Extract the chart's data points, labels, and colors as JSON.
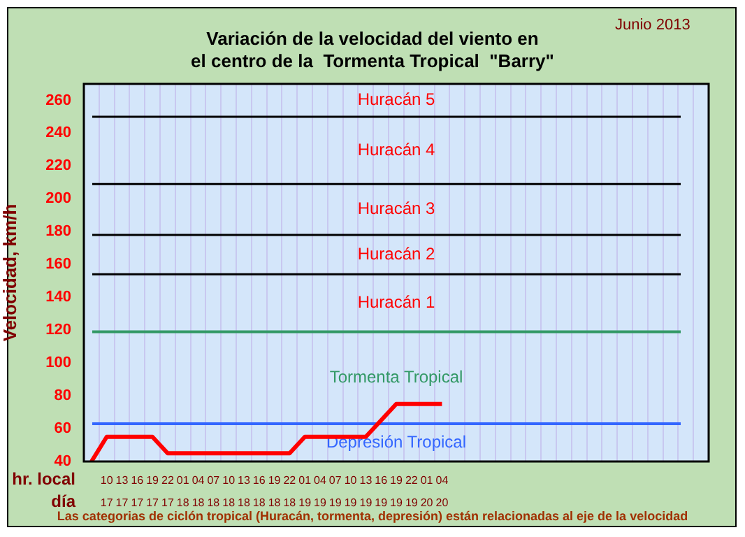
{
  "chart_data": {
    "type": "line",
    "title": "Variación de la velocidad del viento en",
    "subtitle": "el centro de la  Tormenta Tropical  \"Barry\"",
    "ylabel": "Velocidad, km/h",
    "xlabel": "hr. local\ndía",
    "categories": [
      null,
      "10\n17",
      "13\n17",
      "16\n17",
      "19\n17",
      "22\n17",
      "01\n18",
      "04\n18",
      "07\n18",
      "10\n18",
      "13\n18",
      "16\n18",
      "19\n18",
      "22\n18",
      "01\n19",
      "04\n19",
      "07\n19",
      "10\n19",
      "13\n19",
      "16\n19",
      "19\n19",
      "22\n19",
      "01\n20",
      "04\n20",
      null,
      null,
      null,
      null,
      null,
      null,
      null,
      null,
      null,
      null,
      null,
      null,
      null,
      null,
      null,
      null,
      null
    ],
    "series": [
      {
        "color": "#ff0000",
        "values": [
          40,
          55,
          55,
          55,
          55,
          45,
          45,
          45,
          45,
          45,
          45,
          45,
          45,
          45,
          55,
          55,
          55,
          55,
          55,
          65,
          75,
          75,
          75,
          75,
          null,
          null,
          null,
          null,
          null,
          null,
          null,
          null,
          null,
          null,
          null,
          null,
          null,
          null,
          null,
          null,
          null
        ]
      }
    ],
    "ylim": [
      40,
      270
    ],
    "yticks": [
      40,
      60,
      80,
      100,
      120,
      140,
      160,
      180,
      200,
      220,
      240,
      260
    ],
    "grid": "x",
    "marker": "none",
    "line_style": "solid",
    "legend": false,
    "ref_lines": [
      {
        "axis": "y",
        "value": 63,
        "color": "#3366ff"
      },
      {
        "axis": "y",
        "value": 119,
        "color": "#339966"
      },
      {
        "axis": "y",
        "value": 154,
        "color": "#000000"
      },
      {
        "axis": "y",
        "value": 178,
        "color": "#000000"
      },
      {
        "axis": "y",
        "value": 209,
        "color": "#000000"
      },
      {
        "axis": "y",
        "value": 250,
        "color": "#000000"
      }
    ],
    "annotations": [
      "Junio 2013",
      "Las categorias de ciclón tropical (Huracán, tormenta, depresión) están relacionadas al eje de la velocidad",
      "Depresión Tropical",
      "Tormenta Tropical",
      "Huracán 1",
      "Huracán 2",
      "Huracán 3",
      "Huracán 4",
      "Huracán 5"
    ]
  }
}
